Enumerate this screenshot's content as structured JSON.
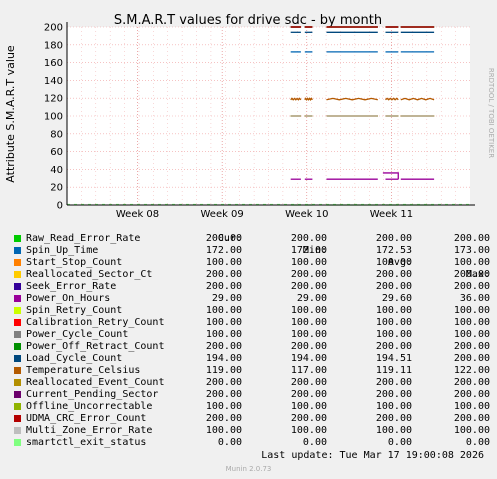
{
  "chart_data": {
    "type": "line",
    "title": "S.M.A.R.T values for drive sdc - by month",
    "ylabel": "Attribute S.M.A.R.T value",
    "ylim": [
      0,
      200
    ],
    "yticks": [
      0,
      20,
      40,
      60,
      80,
      100,
      120,
      140,
      160,
      180,
      200
    ],
    "xticks": [
      "Week 08",
      "Week 09",
      "Week 10",
      "Week 11"
    ],
    "grid": true,
    "side_label": "RRDTOOL / TOBI OETIKER",
    "segments": [
      [
        0.0,
        0.04
      ],
      [
        0.055,
        0.085
      ],
      [
        0.14,
        0.34
      ],
      [
        0.37,
        0.42
      ],
      [
        0.43,
        0.56
      ]
    ],
    "columns": [
      "Cur:",
      "Min:",
      "Avg:",
      "Max:"
    ],
    "series": [
      {
        "name": "Raw_Read_Error_Rate",
        "color": "#00cc00",
        "cur": "200.00",
        "min": "200.00",
        "avg": "200.00",
        "max": "200.00",
        "level": 200
      },
      {
        "name": "Spin_Up_Time",
        "color": "#0066b3",
        "cur": "172.00",
        "min": "172.00",
        "avg": "172.53",
        "max": "173.00",
        "level": 172
      },
      {
        "name": "Start_Stop_Count",
        "color": "#ff8000",
        "cur": "100.00",
        "min": "100.00",
        "avg": "100.00",
        "max": "100.00",
        "level": 100
      },
      {
        "name": "Reallocated_Sector_Ct",
        "color": "#ffcc00",
        "cur": "200.00",
        "min": "200.00",
        "avg": "200.00",
        "max": "200.00",
        "level": 200
      },
      {
        "name": "Seek_Error_Rate",
        "color": "#330099",
        "cur": "200.00",
        "min": "200.00",
        "avg": "200.00",
        "max": "200.00",
        "level": 200
      },
      {
        "name": "Power_On_Hours",
        "color": "#990099",
        "cur": "29.00",
        "min": "29.00",
        "avg": "29.60",
        "max": "36.00",
        "level": 29,
        "bump": 36
      },
      {
        "name": "Spin_Retry_Count",
        "color": "#ccff00",
        "cur": "100.00",
        "min": "100.00",
        "avg": "100.00",
        "max": "100.00",
        "level": 100
      },
      {
        "name": "Calibration_Retry_Count",
        "color": "#ff0000",
        "cur": "100.00",
        "min": "100.00",
        "avg": "100.00",
        "max": "100.00",
        "level": 100
      },
      {
        "name": "Power_Cycle_Count",
        "color": "#808080",
        "cur": "100.00",
        "min": "100.00",
        "avg": "100.00",
        "max": "100.00",
        "level": 100
      },
      {
        "name": "Power_Off_Retract_Count",
        "color": "#008f00",
        "cur": "200.00",
        "min": "200.00",
        "avg": "200.00",
        "max": "200.00",
        "level": 200
      },
      {
        "name": "Load_Cycle_Count",
        "color": "#00487d",
        "cur": "194.00",
        "min": "194.00",
        "avg": "194.51",
        "max": "200.00",
        "level": 194
      },
      {
        "name": "Temperature_Celsius",
        "color": "#b35a00",
        "cur": "119.00",
        "min": "117.00",
        "avg": "119.11",
        "max": "122.00",
        "level": 119,
        "wobble": true
      },
      {
        "name": "Reallocated_Event_Count",
        "color": "#b38f00",
        "cur": "200.00",
        "min": "200.00",
        "avg": "200.00",
        "max": "200.00",
        "level": 200
      },
      {
        "name": "Current_Pending_Sector",
        "color": "#6b006b",
        "cur": "200.00",
        "min": "200.00",
        "avg": "200.00",
        "max": "200.00",
        "level": 200
      },
      {
        "name": "Offline_Uncorrectable",
        "color": "#8fb300",
        "cur": "100.00",
        "min": "100.00",
        "avg": "100.00",
        "max": "100.00",
        "level": 100
      },
      {
        "name": "UDMA_CRC_Error_Count",
        "color": "#b30000",
        "cur": "200.00",
        "min": "200.00",
        "avg": "200.00",
        "max": "200.00",
        "level": 200
      },
      {
        "name": "Multi_Zone_Error_Rate",
        "color": "#bebebe",
        "cur": "100.00",
        "min": "100.00",
        "avg": "100.00",
        "max": "100.00",
        "level": 100
      },
      {
        "name": "smartctl_exit_status",
        "color": "#80ff80",
        "cur": "0.00",
        "min": "0.00",
        "avg": "0.00",
        "max": "0.00",
        "level": 0
      }
    ]
  },
  "footer": {
    "last_update": "Last update: Tue Mar 17 19:00:08 2026",
    "munin_version": "Munin 2.0.73"
  }
}
